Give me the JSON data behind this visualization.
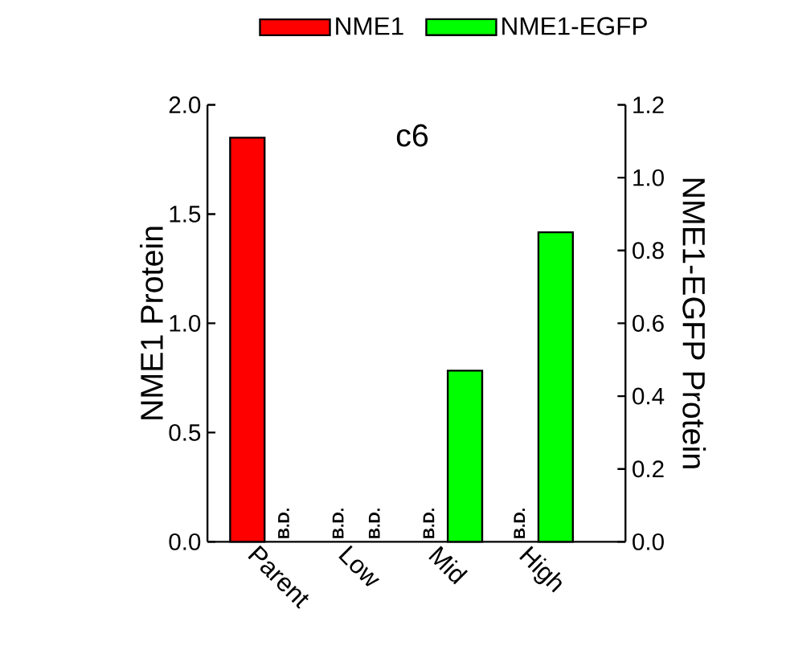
{
  "chart_data": {
    "type": "bar",
    "ylabel": "NME1 Protein",
    "y2label": "NME1-EGFP Protein",
    "categories": [
      "Parent",
      "Low",
      "Mid",
      "High"
    ],
    "series": [
      {
        "name": "NME1",
        "color": "#ff0000",
        "values": [
          1.85,
          null,
          null,
          null
        ],
        "value_labels": [
          null,
          "B.D.",
          "B.D.",
          "B.D."
        ]
      },
      {
        "name": "NME1-EGFP",
        "color": "#00ff00",
        "axis": "y2",
        "values": [
          null,
          null,
          0.47,
          0.85
        ],
        "value_labels": [
          "B.D.",
          "B.D.",
          null,
          null
        ]
      }
    ],
    "ylim": [
      0,
      2.0
    ],
    "yticks": [
      {
        "value": 0,
        "label": "0.0"
      },
      {
        "value": 0.5,
        "label": "0.5"
      },
      {
        "value": 1,
        "label": "1.0"
      },
      {
        "value": 1.5,
        "label": "1.5"
      },
      {
        "value": 2,
        "label": "2.0"
      }
    ],
    "y2lim": [
      0,
      1.2
    ],
    "y2ticks": [
      {
        "value": 0,
        "label": "0.0"
      },
      {
        "value": 0.2,
        "label": "0.2"
      },
      {
        "value": 0.4,
        "label": "0.4"
      },
      {
        "value": 0.6,
        "label": "0.6"
      },
      {
        "value": 0.8,
        "label": "0.8"
      },
      {
        "value": 1,
        "label": "1.0"
      },
      {
        "value": 1.2,
        "label": "1.2"
      }
    ],
    "legend": "top",
    "annotations": [
      "c6"
    ]
  }
}
